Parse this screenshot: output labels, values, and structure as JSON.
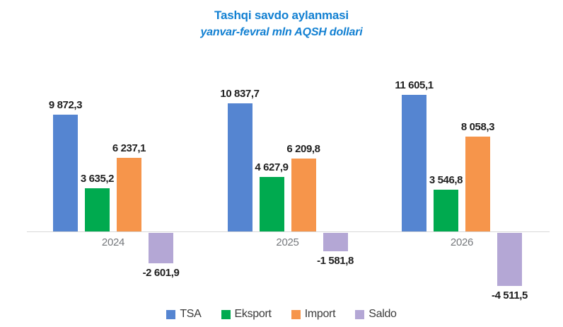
{
  "chart_data": {
    "type": "bar",
    "title": "Tashqi savdo aylanmasi",
    "subtitle": "yanvar-fevral mln AQSH dollari",
    "categories": [
      "2024",
      "2025",
      "2026"
    ],
    "series": [
      {
        "name": "TSA",
        "color": "#5585d1",
        "values": [
          9872.3,
          10837.7,
          11605.1
        ],
        "labels": [
          "9 872,3",
          "10 837,7",
          "11 605,1"
        ]
      },
      {
        "name": "Eksport",
        "color": "#00aa4f",
        "values": [
          3635.2,
          4627.9,
          3546.8
        ],
        "labels": [
          "3 635,2",
          "4 627,9",
          "3 546,8"
        ]
      },
      {
        "name": "Import",
        "color": "#f6954b",
        "values": [
          6237.1,
          6209.8,
          8058.3
        ],
        "labels": [
          "6 237,1",
          "6 209,8",
          "8 058,3"
        ]
      },
      {
        "name": "Saldo",
        "color": "#b4a7d5",
        "values": [
          -2601.9,
          -1581.8,
          -4511.5
        ],
        "labels": [
          "-2 601,9",
          "-1 581,8",
          "-4 511,5"
        ]
      }
    ],
    "legend_position": "bottom",
    "grid": false,
    "value_labels_shown": true,
    "colors": {
      "page_bg": "#ffffff",
      "title": "#1280d2",
      "axis": "#d9d9d9",
      "value_label": "#1f1f1f",
      "tick_label": "#75787c",
      "legend_text": "#3a3a3a"
    }
  }
}
